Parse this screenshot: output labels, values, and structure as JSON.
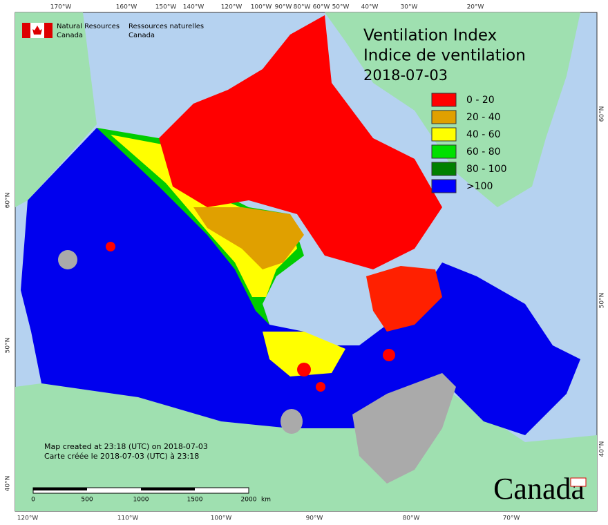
{
  "agency": {
    "en": [
      "Natural Resources",
      "Canada"
    ],
    "fr": [
      "Ressources naturelles",
      "Canada"
    ]
  },
  "title": [
    "Ventilation Index",
    "Indice de ventilation",
    "2018-07-03"
  ],
  "legend": [
    {
      "label": "0 - 20",
      "color": "#ff0000"
    },
    {
      "label": "20 - 40",
      "color": "#e0a000"
    },
    {
      "label": "40 - 60",
      "color": "#ffff00"
    },
    {
      "label": "60 - 80",
      "color": "#00e000"
    },
    {
      "label": "80 - 100",
      "color": "#008000"
    },
    {
      "label": ">100",
      "color": "#0000ff"
    }
  ],
  "graticule": {
    "top": [
      "170°W",
      "160°W",
      "150°W",
      "140°W",
      "120°W",
      "100°W",
      "90°W",
      "80°W",
      "60°W",
      "50°W",
      "40°W",
      "30°W",
      "20°W"
    ],
    "bottom": [
      "120°W",
      "110°W",
      "100°W",
      "90°W",
      "80°W",
      "70°W"
    ],
    "left": [
      "60°N",
      "50°N",
      "40°N"
    ],
    "right": [
      "60°N",
      "50°N",
      "40°N"
    ]
  },
  "credits": [
    "Map created at 23:18 (UTC) on 2018-07-03",
    "Carte créée le 2018-07-03 (UTC) à 23:18"
  ],
  "scale_bar": {
    "ticks": [
      "0",
      "500",
      "1000",
      "1500",
      "2000"
    ],
    "unit": "km"
  },
  "wordmark": "Canada"
}
